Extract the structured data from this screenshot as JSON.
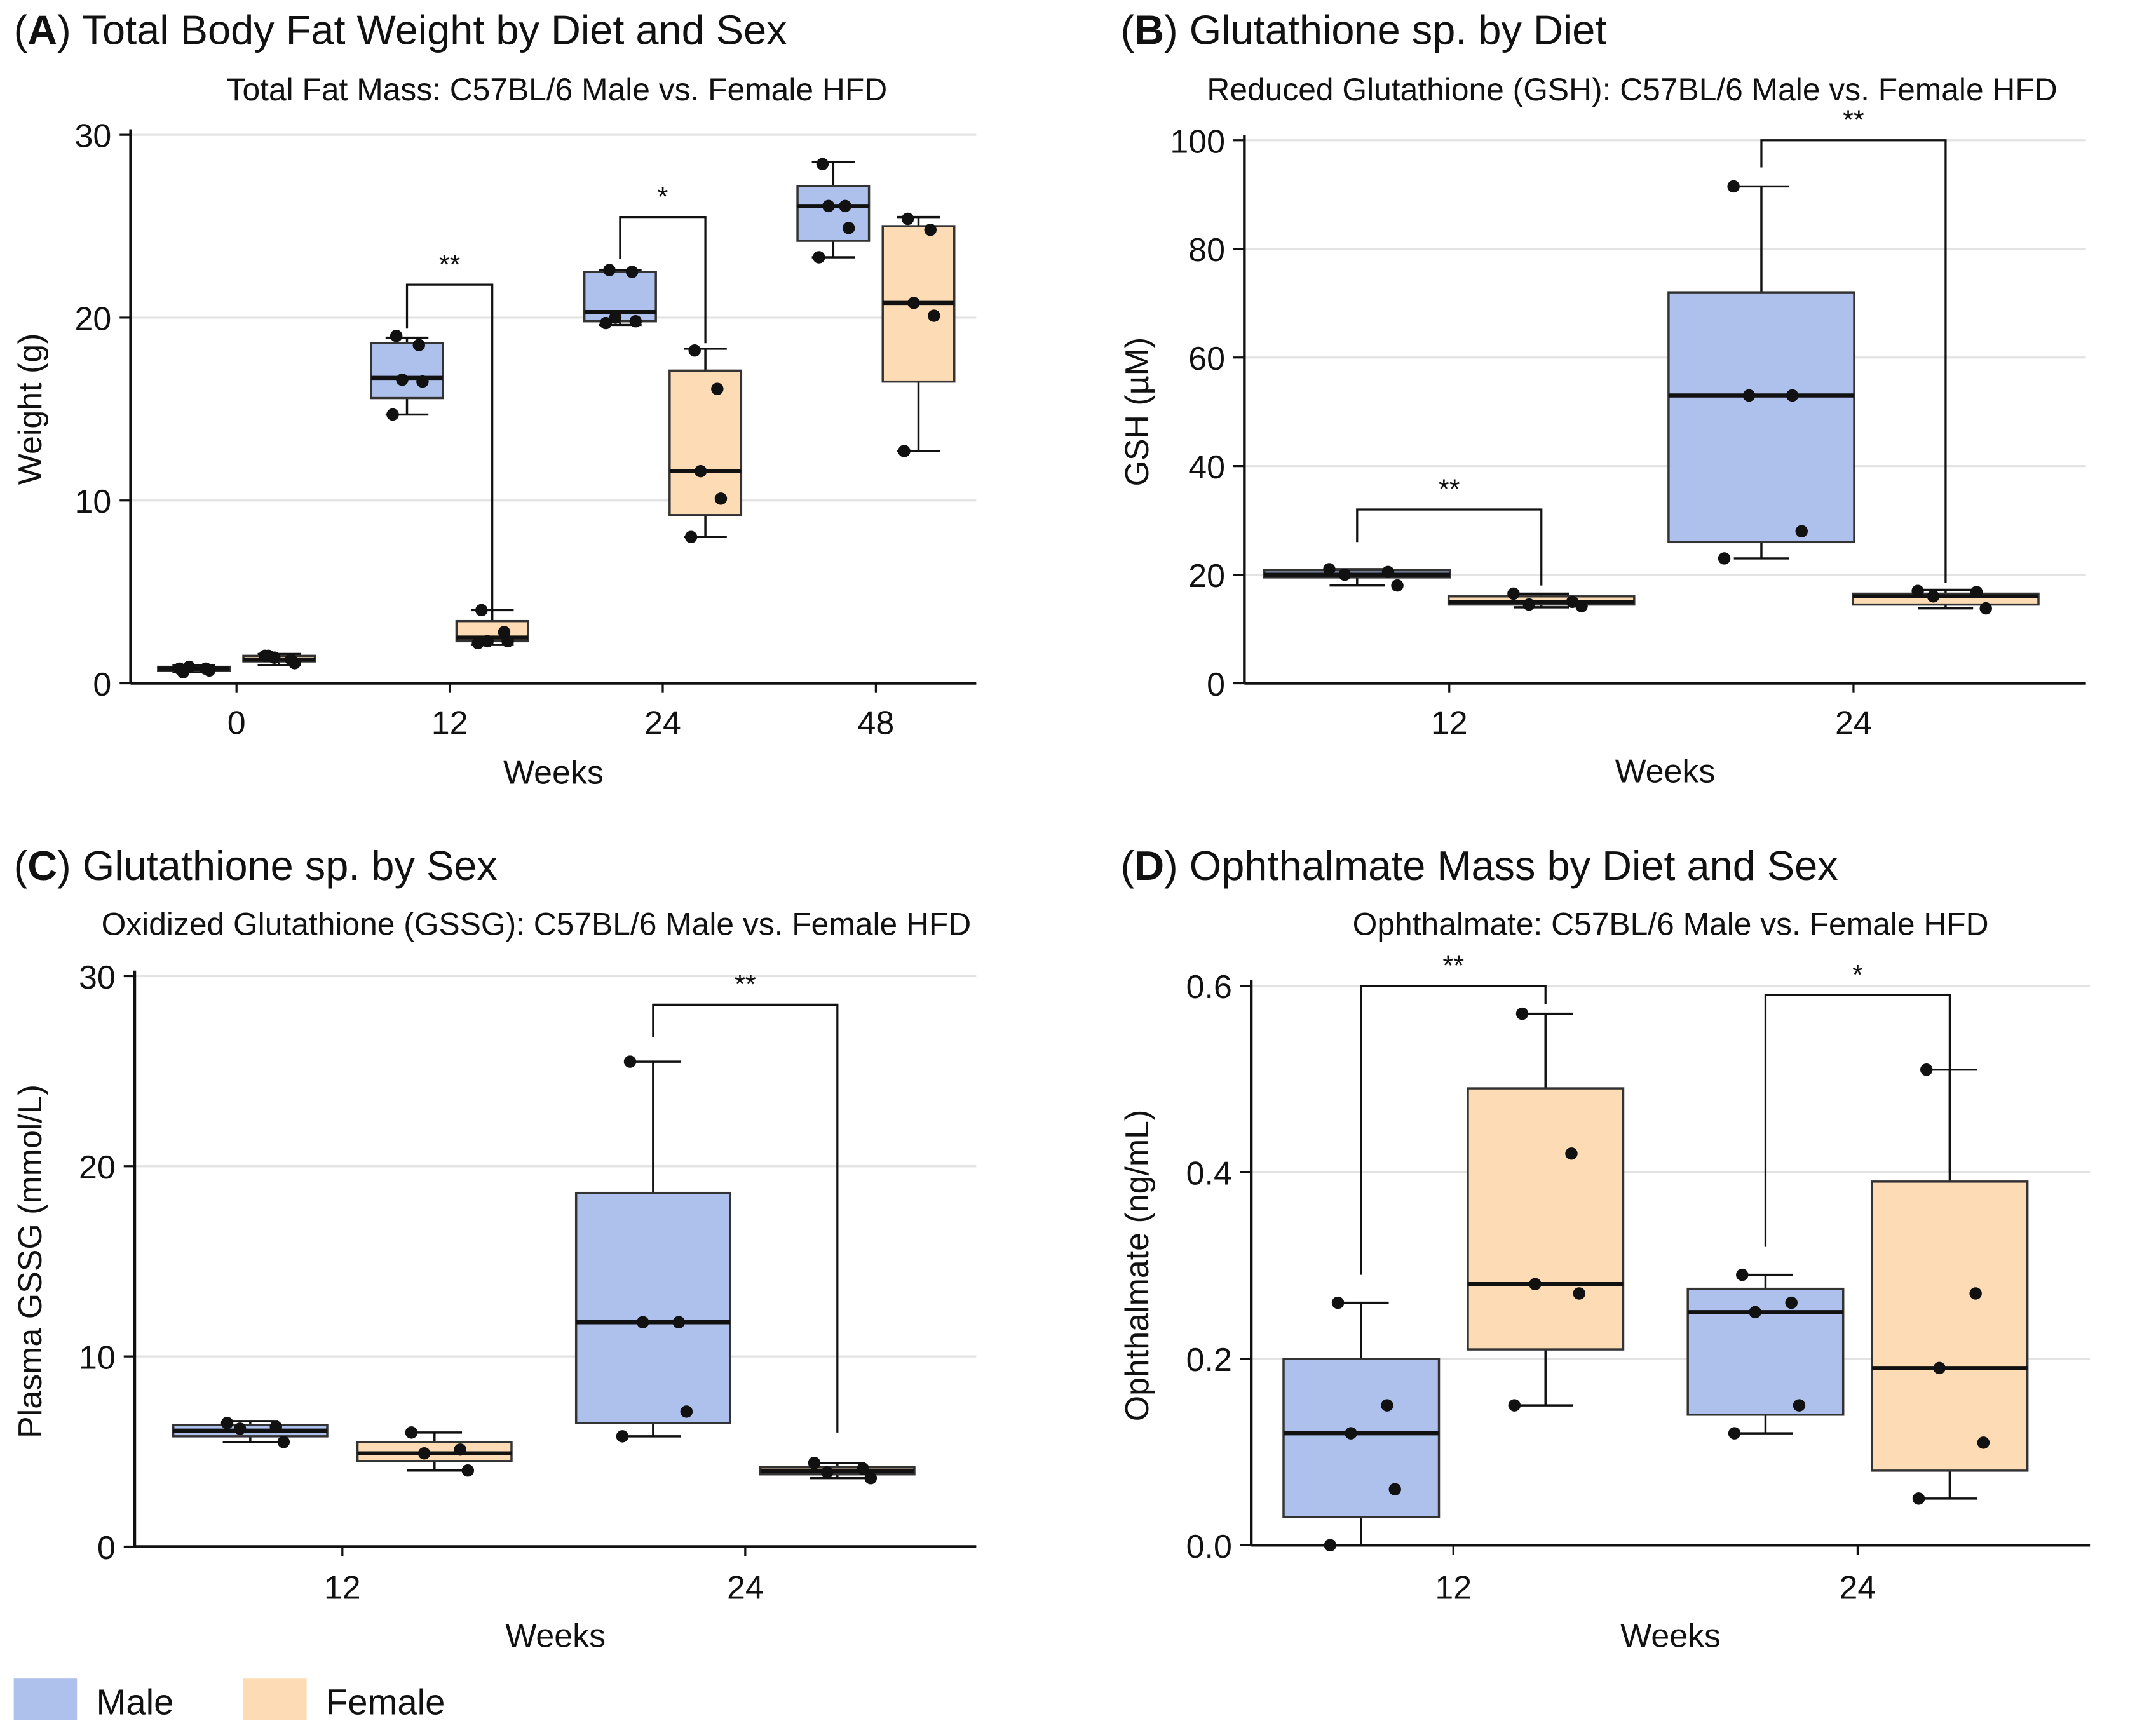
{
  "colors": {
    "male": "#aec0ec",
    "female": "#fddcb5",
    "grid": "#e3e3e3",
    "ink": "#111111"
  },
  "legend": [
    {
      "label": "Male",
      "color": "#aec0ec"
    },
    {
      "label": "Female",
      "color": "#fddcb5"
    }
  ],
  "chart_data": [
    {
      "type": "box",
      "letter": "A",
      "title_rest": ") Total Body Fat Weight by Diet and Sex",
      "subtitle": "Total Fat Mass: C57BL/6 Male vs. Female HFD",
      "xlabel": "Weeks",
      "ylabel": "Weight (g)",
      "ylim": [
        0,
        30
      ],
      "yticks": [
        "0",
        "10",
        "20",
        "30"
      ],
      "ytick_values": [
        0,
        10,
        20,
        30
      ],
      "categories": [
        "0",
        "12",
        "24",
        "48"
      ],
      "series": [
        {
          "name": "Male",
          "boxes": [
            {
              "whislo": 0.6,
              "q1": 0.7,
              "med": 0.8,
              "q3": 0.9,
              "whishi": 1.0,
              "points": [
                0.6,
                0.8,
                0.9,
                0.7,
                0.8
              ]
            },
            {
              "whislo": 14.7,
              "q1": 15.6,
              "med": 16.7,
              "q3": 18.6,
              "whishi": 18.9,
              "points": [
                19.0,
                18.5,
                16.6,
                16.5,
                14.7
              ]
            },
            {
              "whislo": 19.6,
              "q1": 19.8,
              "med": 20.3,
              "q3": 22.5,
              "whishi": 22.6,
              "points": [
                22.6,
                22.5,
                20.0,
                19.8,
                19.7
              ]
            },
            {
              "whislo": 23.3,
              "q1": 24.2,
              "med": 26.1,
              "q3": 27.2,
              "whishi": 28.5,
              "points": [
                28.4,
                26.1,
                26.1,
                24.9,
                23.3
              ]
            }
          ]
        },
        {
          "name": "Female",
          "boxes": [
            {
              "whislo": 1.0,
              "q1": 1.2,
              "med": 1.3,
              "q3": 1.5,
              "whishi": 1.6,
              "points": [
                1.5,
                1.3,
                1.4,
                1.1,
                1.5
              ]
            },
            {
              "whislo": 2.1,
              "q1": 2.3,
              "med": 2.5,
              "q3": 3.4,
              "whishi": 4.0,
              "points": [
                4.0,
                2.8,
                2.3,
                2.3,
                2.2
              ]
            },
            {
              "whislo": 8.0,
              "q1": 9.2,
              "med": 11.6,
              "q3": 17.1,
              "whishi": 18.3,
              "points": [
                18.2,
                16.1,
                11.6,
                10.1,
                8.0
              ]
            },
            {
              "whislo": 12.7,
              "q1": 16.5,
              "med": 20.8,
              "q3": 25.0,
              "whishi": 25.5,
              "points": [
                25.4,
                24.8,
                20.8,
                20.1,
                12.7
              ]
            }
          ]
        }
      ],
      "significance": [
        {
          "category": "12",
          "label": "**",
          "y": 21.8,
          "left_from": 19.4,
          "right_to": 4.0
        },
        {
          "category": "24",
          "label": "*",
          "y": 25.5,
          "left_from": 23.2,
          "right_to": 18.6
        }
      ]
    },
    {
      "type": "box",
      "letter": "B",
      "title_rest": ")  Glutathione sp. by Diet",
      "subtitle": "Reduced Glutathione (GSH): C57BL/6 Male vs. Female HFD",
      "xlabel": "Weeks",
      "ylabel": "GSH (µM)",
      "ylim": [
        0,
        100
      ],
      "yticks": [
        "0",
        "20",
        "40",
        "60",
        "80",
        "100"
      ],
      "ytick_values": [
        0,
        20,
        40,
        60,
        80,
        100
      ],
      "categories": [
        "12",
        "24"
      ],
      "series": [
        {
          "name": "Male",
          "boxes": [
            {
              "whislo": 18,
              "q1": 19.5,
              "med": 20,
              "q3": 20.8,
              "whishi": 21,
              "points": [
                21,
                20.5,
                20,
                18
              ]
            },
            {
              "whislo": 23,
              "q1": 26,
              "med": 53,
              "q3": 72,
              "whishi": 91.5,
              "points": [
                91.5,
                53,
                53,
                28,
                23
              ]
            }
          ]
        },
        {
          "name": "Female",
          "boxes": [
            {
              "whislo": 14,
              "q1": 14.5,
              "med": 15,
              "q3": 16,
              "whishi": 16.5,
              "points": [
                16.5,
                15,
                14.5,
                14.2
              ]
            },
            {
              "whislo": 13.8,
              "q1": 14.5,
              "med": 16,
              "q3": 16.5,
              "whishi": 17.2,
              "points": [
                17,
                16.8,
                16,
                13.8
              ]
            }
          ]
        }
      ],
      "significance": [
        {
          "category": "12",
          "label": "**",
          "y": 32,
          "left_from": 26,
          "right_to": 18
        },
        {
          "category": "24",
          "label": "**",
          "y": 100,
          "left_from": 95,
          "right_to": 18.5
        }
      ]
    },
    {
      "type": "box",
      "letter": "C",
      "title_rest": ")  Glutathione sp. by Sex",
      "subtitle": "Oxidized Glutathione (GSSG): C57BL/6 Male vs. Female HFD",
      "xlabel": "Weeks",
      "ylabel": "Plasma GSSG (mmol/L)",
      "ylim": [
        0,
        30
      ],
      "yticks": [
        "0",
        "10",
        "20",
        "30"
      ],
      "ytick_values": [
        0,
        10,
        20,
        30
      ],
      "categories": [
        "12",
        "24"
      ],
      "series": [
        {
          "name": "Male",
          "boxes": [
            {
              "whislo": 5.5,
              "q1": 5.8,
              "med": 6.1,
              "q3": 6.4,
              "whishi": 6.6,
              "points": [
                6.5,
                6.3,
                6.2,
                5.5
              ]
            },
            {
              "whislo": 5.8,
              "q1": 6.5,
              "med": 11.8,
              "q3": 18.6,
              "whishi": 25.5,
              "points": [
                25.5,
                11.8,
                11.8,
                7.1,
                5.8
              ]
            }
          ]
        },
        {
          "name": "Female",
          "boxes": [
            {
              "whislo": 4.0,
              "q1": 4.5,
              "med": 4.9,
              "q3": 5.5,
              "whishi": 6.0,
              "points": [
                6.0,
                5.1,
                4.9,
                4.0
              ]
            },
            {
              "whislo": 3.6,
              "q1": 3.8,
              "med": 4.0,
              "q3": 4.2,
              "whishi": 4.4,
              "points": [
                4.4,
                4.1,
                3.9,
                3.6
              ]
            }
          ]
        }
      ],
      "significance": [
        {
          "category": "24",
          "label": "**",
          "y": 28.5,
          "left_from": 26.8,
          "right_to": 6.0
        }
      ]
    },
    {
      "type": "box",
      "letter": "D",
      "title_rest": ")  Ophthalmate Mass by Diet and Sex",
      "subtitle": "Ophthalmate: C57BL/6 Male vs. Female HFD",
      "xlabel": "Weeks",
      "ylabel": "Ophthalmate (ng/mL)",
      "ylim": [
        0,
        0.6
      ],
      "yticks": [
        "0.0",
        "0.2",
        "0.4",
        "0.6"
      ],
      "ytick_values": [
        0,
        0.2,
        0.4,
        0.6
      ],
      "categories": [
        "12",
        "24"
      ],
      "series": [
        {
          "name": "Male",
          "boxes": [
            {
              "whislo": 0.0,
              "q1": 0.03,
              "med": 0.12,
              "q3": 0.2,
              "whishi": 0.26,
              "points": [
                0.26,
                0.15,
                0.12,
                0.06,
                0.0
              ]
            },
            {
              "whislo": 0.12,
              "q1": 0.14,
              "med": 0.25,
              "q3": 0.275,
              "whishi": 0.29,
              "points": [
                0.29,
                0.26,
                0.25,
                0.15,
                0.12
              ]
            }
          ]
        },
        {
          "name": "Female",
          "boxes": [
            {
              "whislo": 0.15,
              "q1": 0.21,
              "med": 0.28,
              "q3": 0.49,
              "whishi": 0.57,
              "points": [
                0.57,
                0.42,
                0.28,
                0.27,
                0.15
              ]
            },
            {
              "whislo": 0.05,
              "q1": 0.08,
              "med": 0.19,
              "q3": 0.39,
              "whishi": 0.51,
              "points": [
                0.51,
                0.27,
                0.19,
                0.11,
                0.05
              ]
            }
          ]
        }
      ],
      "significance": [
        {
          "category": "12",
          "label": "**",
          "y": 0.6,
          "left_from": 0.29,
          "right_to": 0.58
        },
        {
          "category": "24",
          "label": "*",
          "y": 0.59,
          "left_from": 0.32,
          "right_to": 0.4
        }
      ]
    }
  ]
}
